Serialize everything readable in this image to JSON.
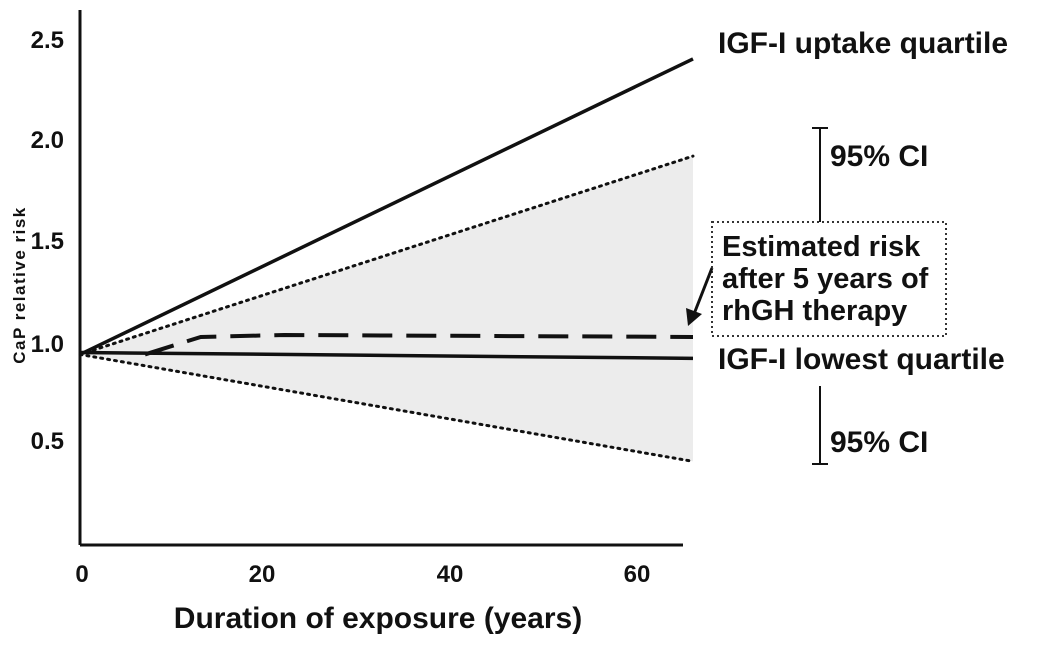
{
  "chart_data": {
    "type": "line",
    "xlabel": "Duration of exposure (years)",
    "ylabel": "CaP relative risk",
    "xlim": [
      0,
      66
    ],
    "ylim": [
      0,
      2.7
    ],
    "x_ticks": [
      "0",
      "20",
      "40",
      "60"
    ],
    "y_ticks": [
      "0.5",
      "1.0",
      "1.5",
      "2.0",
      "2.5"
    ],
    "x_tick_values": [
      0,
      20,
      40,
      60
    ],
    "y_tick_values": [
      0.5,
      1.0,
      1.5,
      2.0,
      2.5
    ],
    "series": [
      {
        "name": "IGF-I uptake quartile",
        "style": "solid",
        "x": [
          0,
          66
        ],
        "y": [
          0.98,
          2.5
        ]
      },
      {
        "name": "IGF-I lowest quartile",
        "style": "solid",
        "x": [
          0,
          66
        ],
        "y": [
          0.99,
          0.96
        ]
      },
      {
        "name": "",
        "style": "dotted",
        "x": [
          0,
          66
        ],
        "y": [
          0.98,
          2.0
        ]
      },
      {
        "name": "",
        "style": "dotted",
        "x": [
          0,
          66
        ],
        "y": [
          0.98,
          0.43
        ]
      },
      {
        "name": "",
        "style": "dashed",
        "x": [
          7,
          13,
          22,
          66
        ],
        "y": [
          0.98,
          1.07,
          1.08,
          1.07
        ]
      }
    ],
    "shaded_band": "between 95% CI bounds",
    "annotations": {
      "ci_upper": "95% CI",
      "ci_lower": "95% CI",
      "box": [
        "Estimated risk",
        "after 5 years of",
        "rhGH therapy"
      ]
    },
    "colors": {
      "line": "#111111",
      "band": "#dcdcdc"
    }
  }
}
